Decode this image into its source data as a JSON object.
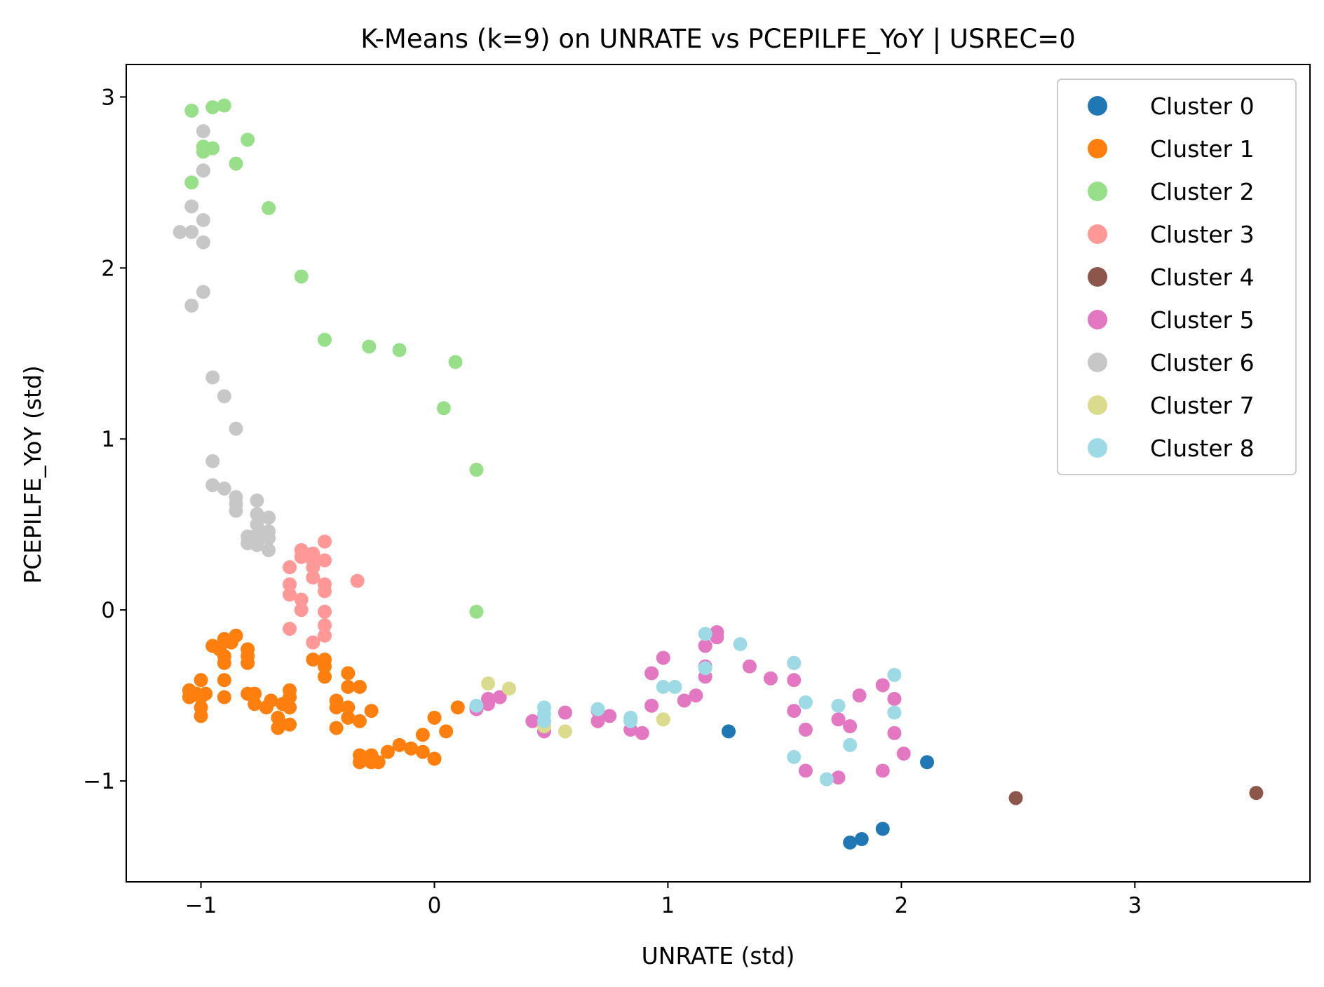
{
  "chart_data": {
    "type": "scatter",
    "title": "K-Means (k=9) on UNRATE vs PCEPILFE_YoY | USREC=0",
    "xlabel": "UNRATE (std)",
    "ylabel": "PCEPILFE_YoY (std)",
    "xlim": [
      -1.32,
      3.75
    ],
    "ylim": [
      -1.59,
      3.19
    ],
    "xticks": [
      -1,
      0,
      1,
      2,
      3
    ],
    "yticks": [
      -1,
      0,
      1,
      2,
      3
    ],
    "xtick_labels": [
      "−1",
      "0",
      "1",
      "2",
      "3"
    ],
    "ytick_labels": [
      "−1",
      "0",
      "1",
      "2",
      "3"
    ],
    "grid": false,
    "legend": "top-right",
    "series": [
      {
        "name": "Cluster 0",
        "color": "#1f77b4",
        "points": [
          [
            1.26,
            -0.71
          ],
          [
            1.78,
            -1.36
          ],
          [
            1.83,
            -1.34
          ],
          [
            1.92,
            -1.28
          ],
          [
            2.11,
            -0.89
          ]
        ]
      },
      {
        "name": "Cluster 1",
        "color": "#ff7f0e",
        "points": [
          [
            -1.05,
            -0.47
          ],
          [
            -1.05,
            -0.51
          ],
          [
            -1.02,
            -0.49
          ],
          [
            -1.0,
            -0.41
          ],
          [
            -1.0,
            -0.51
          ],
          [
            -1.0,
            -0.57
          ],
          [
            -1.0,
            -0.62
          ],
          [
            -0.98,
            -0.49
          ],
          [
            -0.95,
            -0.21
          ],
          [
            -0.92,
            -0.23
          ],
          [
            -0.9,
            -0.17
          ],
          [
            -0.9,
            -0.27
          ],
          [
            -0.9,
            -0.31
          ],
          [
            -0.9,
            -0.41
          ],
          [
            -0.9,
            -0.51
          ],
          [
            -0.87,
            -0.19
          ],
          [
            -0.85,
            -0.15
          ],
          [
            -0.8,
            -0.23
          ],
          [
            -0.8,
            -0.27
          ],
          [
            -0.8,
            -0.31
          ],
          [
            -0.8,
            -0.49
          ],
          [
            -0.77,
            -0.49
          ],
          [
            -0.77,
            -0.55
          ],
          [
            -0.72,
            -0.57
          ],
          [
            -0.7,
            -0.53
          ],
          [
            -0.67,
            -0.63
          ],
          [
            -0.67,
            -0.69
          ],
          [
            -0.65,
            -0.55
          ],
          [
            -0.62,
            -0.47
          ],
          [
            -0.62,
            -0.51
          ],
          [
            -0.62,
            -0.57
          ],
          [
            -0.62,
            -0.67
          ],
          [
            -0.52,
            -0.29
          ],
          [
            -0.47,
            -0.29
          ],
          [
            -0.47,
            -0.33
          ],
          [
            -0.47,
            -0.39
          ],
          [
            -0.42,
            -0.53
          ],
          [
            -0.42,
            -0.57
          ],
          [
            -0.42,
            -0.69
          ],
          [
            -0.37,
            -0.37
          ],
          [
            -0.37,
            -0.45
          ],
          [
            -0.37,
            -0.57
          ],
          [
            -0.37,
            -0.63
          ],
          [
            -0.32,
            -0.45
          ],
          [
            -0.32,
            -0.65
          ],
          [
            -0.32,
            -0.85
          ],
          [
            -0.32,
            -0.89
          ],
          [
            -0.27,
            -0.59
          ],
          [
            -0.27,
            -0.85
          ],
          [
            -0.27,
            -0.89
          ],
          [
            -0.24,
            -0.89
          ],
          [
            -0.2,
            -0.83
          ],
          [
            -0.15,
            -0.79
          ],
          [
            -0.1,
            -0.81
          ],
          [
            -0.05,
            -0.83
          ],
          [
            -0.05,
            -0.73
          ],
          [
            0.0,
            -0.63
          ],
          [
            0.0,
            -0.87
          ],
          [
            0.05,
            -0.71
          ],
          [
            0.1,
            -0.57
          ]
        ]
      },
      {
        "name": "Cluster 2",
        "color": "#98df8a",
        "points": [
          [
            -1.04,
            2.92
          ],
          [
            -1.04,
            2.5
          ],
          [
            -0.99,
            2.57
          ],
          [
            -0.99,
            2.68
          ],
          [
            -0.99,
            2.71
          ],
          [
            -0.95,
            2.94
          ],
          [
            -0.95,
            2.7
          ],
          [
            -0.9,
            2.95
          ],
          [
            -0.85,
            2.61
          ],
          [
            -0.8,
            2.75
          ],
          [
            -0.71,
            2.35
          ],
          [
            -0.57,
            1.95
          ],
          [
            -0.47,
            1.58
          ],
          [
            -0.28,
            1.54
          ],
          [
            -0.15,
            1.52
          ],
          [
            0.04,
            1.18
          ],
          [
            0.09,
            1.45
          ],
          [
            0.18,
            0.82
          ],
          [
            0.18,
            -0.01
          ]
        ]
      },
      {
        "name": "Cluster 3",
        "color": "#ff9896",
        "points": [
          [
            -0.62,
            0.25
          ],
          [
            -0.62,
            0.15
          ],
          [
            -0.62,
            0.09
          ],
          [
            -0.62,
            -0.11
          ],
          [
            -0.57,
            0.35
          ],
          [
            -0.57,
            0.31
          ],
          [
            -0.57,
            0.06
          ],
          [
            -0.57,
            0.0
          ],
          [
            -0.52,
            0.33
          ],
          [
            -0.52,
            0.29
          ],
          [
            -0.52,
            0.25
          ],
          [
            -0.52,
            0.19
          ],
          [
            -0.52,
            -0.19
          ],
          [
            -0.47,
            0.4
          ],
          [
            -0.47,
            0.29
          ],
          [
            -0.47,
            0.15
          ],
          [
            -0.47,
            0.11
          ],
          [
            -0.47,
            -0.01
          ],
          [
            -0.47,
            -0.09
          ],
          [
            -0.47,
            -0.15
          ],
          [
            -0.33,
            0.17
          ]
        ]
      },
      {
        "name": "Cluster 4",
        "color": "#8c564b",
        "points": [
          [
            2.49,
            -1.1
          ],
          [
            3.52,
            -1.07
          ]
        ]
      },
      {
        "name": "Cluster 5",
        "color": "#e377c2",
        "points": [
          [
            0.18,
            -0.58
          ],
          [
            0.23,
            -0.52
          ],
          [
            0.23,
            -0.55
          ],
          [
            0.28,
            -0.51
          ],
          [
            0.42,
            -0.65
          ],
          [
            0.47,
            -0.71
          ],
          [
            0.56,
            -0.6
          ],
          [
            0.7,
            -0.65
          ],
          [
            0.7,
            -0.59
          ],
          [
            0.75,
            -0.62
          ],
          [
            0.84,
            -0.7
          ],
          [
            0.89,
            -0.72
          ],
          [
            0.93,
            -0.56
          ],
          [
            0.93,
            -0.37
          ],
          [
            0.98,
            -0.28
          ],
          [
            1.07,
            -0.53
          ],
          [
            1.12,
            -0.5
          ],
          [
            1.16,
            -0.39
          ],
          [
            1.16,
            -0.33
          ],
          [
            1.16,
            -0.21
          ],
          [
            1.21,
            -0.16
          ],
          [
            1.21,
            -0.13
          ],
          [
            1.35,
            -0.33
          ],
          [
            1.44,
            -0.4
          ],
          [
            1.54,
            -0.41
          ],
          [
            1.54,
            -0.59
          ],
          [
            1.54,
            -0.31
          ],
          [
            1.59,
            -0.7
          ],
          [
            1.59,
            -0.94
          ],
          [
            1.73,
            -0.64
          ],
          [
            1.73,
            -0.98
          ],
          [
            1.78,
            -0.68
          ],
          [
            1.82,
            -0.5
          ],
          [
            1.92,
            -0.44
          ],
          [
            1.92,
            -0.94
          ],
          [
            1.97,
            -0.52
          ],
          [
            1.97,
            -0.72
          ],
          [
            2.01,
            -0.84
          ]
        ]
      },
      {
        "name": "Cluster 6",
        "color": "#c7c7c7",
        "points": [
          [
            -1.09,
            2.21
          ],
          [
            -1.04,
            2.21
          ],
          [
            -1.04,
            2.36
          ],
          [
            -1.04,
            1.78
          ],
          [
            -0.99,
            2.8
          ],
          [
            -0.99,
            2.57
          ],
          [
            -0.99,
            2.28
          ],
          [
            -0.99,
            2.15
          ],
          [
            -0.99,
            1.86
          ],
          [
            -0.95,
            1.36
          ],
          [
            -0.95,
            0.87
          ],
          [
            -0.95,
            0.73
          ],
          [
            -0.9,
            1.25
          ],
          [
            -0.9,
            0.71
          ],
          [
            -0.85,
            1.06
          ],
          [
            -0.85,
            0.66
          ],
          [
            -0.85,
            0.62
          ],
          [
            -0.85,
            0.58
          ],
          [
            -0.8,
            0.43
          ],
          [
            -0.8,
            0.39
          ],
          [
            -0.76,
            0.64
          ],
          [
            -0.76,
            0.56
          ],
          [
            -0.76,
            0.5
          ],
          [
            -0.76,
            0.44
          ],
          [
            -0.76,
            0.38
          ],
          [
            -0.71,
            0.54
          ],
          [
            -0.71,
            0.46
          ],
          [
            -0.71,
            0.42
          ],
          [
            -0.71,
            0.35
          ]
        ]
      },
      {
        "name": "Cluster 7",
        "color": "#dbdb8d",
        "points": [
          [
            0.23,
            -0.43
          ],
          [
            0.32,
            -0.46
          ],
          [
            0.47,
            -0.68
          ],
          [
            0.56,
            -0.71
          ],
          [
            0.98,
            -0.64
          ]
        ]
      },
      {
        "name": "Cluster 8",
        "color": "#9edae5",
        "points": [
          [
            0.18,
            -0.56
          ],
          [
            0.47,
            -0.57
          ],
          [
            0.47,
            -0.61
          ],
          [
            0.47,
            -0.65
          ],
          [
            0.7,
            -0.58
          ],
          [
            0.84,
            -0.63
          ],
          [
            0.84,
            -0.65
          ],
          [
            0.98,
            -0.45
          ],
          [
            1.03,
            -0.45
          ],
          [
            1.16,
            -0.14
          ],
          [
            1.16,
            -0.34
          ],
          [
            1.31,
            -0.2
          ],
          [
            1.54,
            -0.31
          ],
          [
            1.54,
            -0.86
          ],
          [
            1.59,
            -0.54
          ],
          [
            1.68,
            -0.99
          ],
          [
            1.73,
            -0.56
          ],
          [
            1.78,
            -0.79
          ],
          [
            1.97,
            -0.38
          ],
          [
            1.97,
            -0.6
          ]
        ]
      }
    ]
  }
}
